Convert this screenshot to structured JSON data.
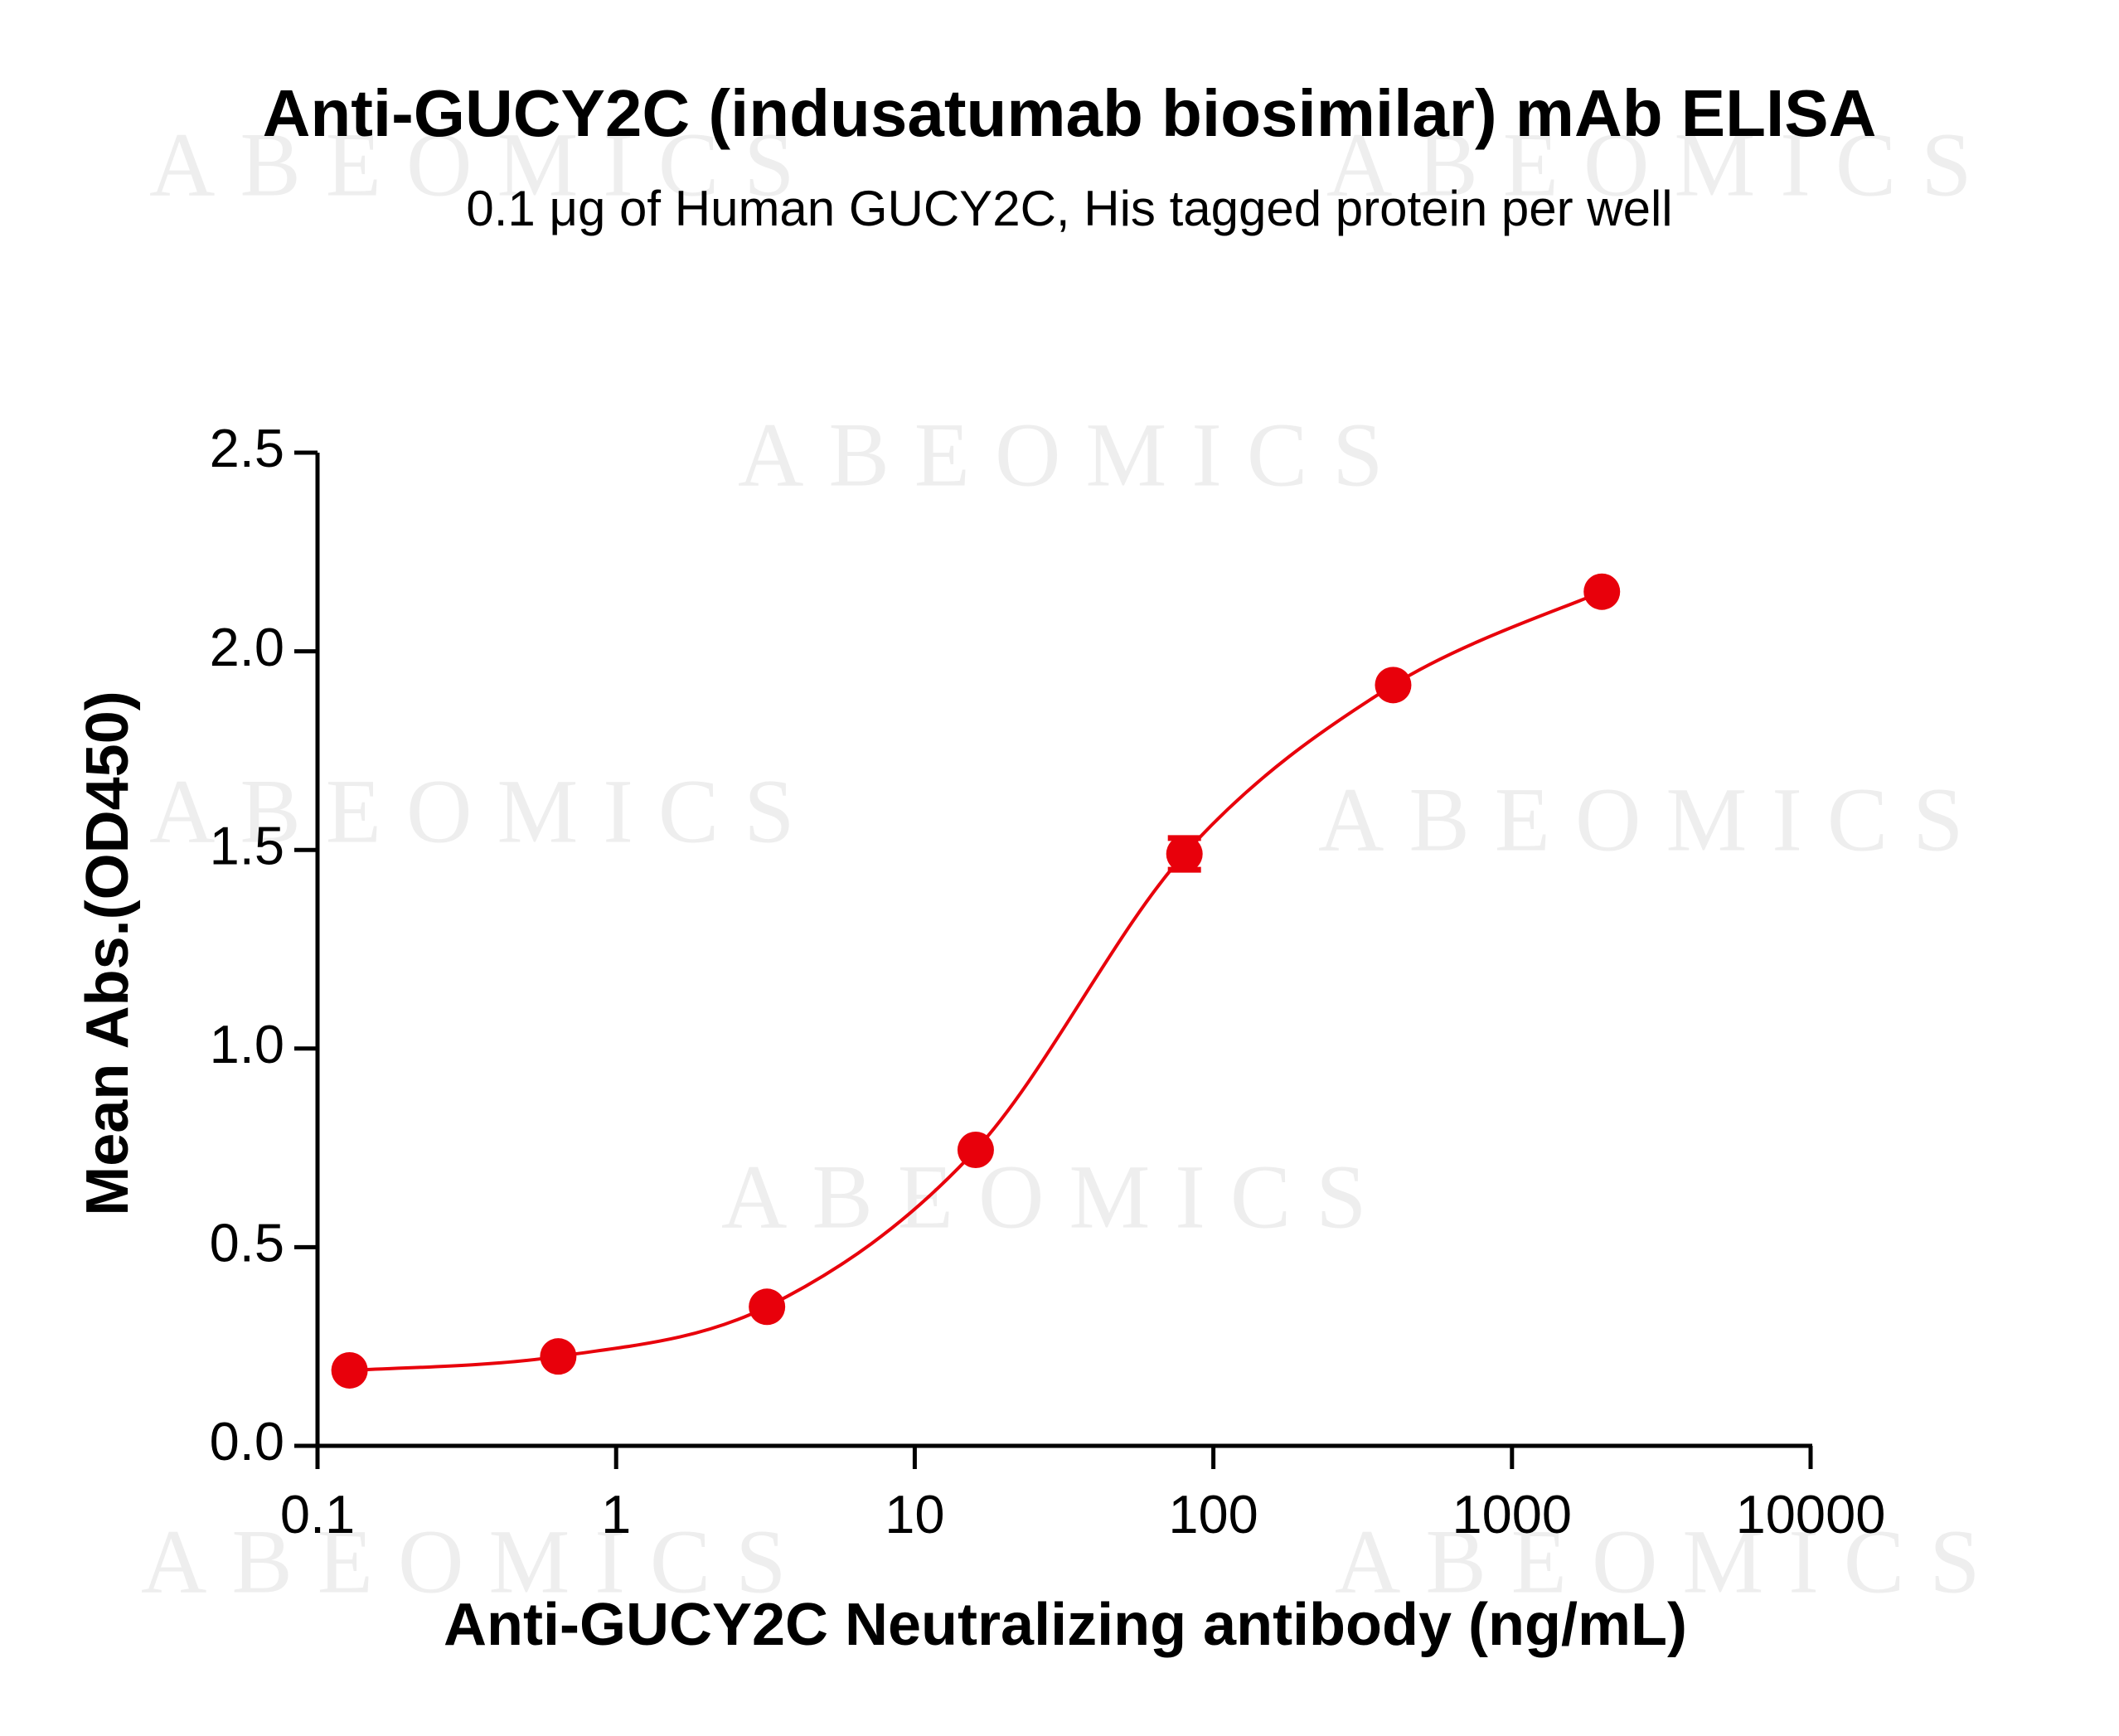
{
  "chart_data": {
    "type": "scatter",
    "title": "Anti-GUCY2C (indusatumab biosimilar) mAb ELISA",
    "subtitle": "0.1 μg of Human GUCY2C, His tagged protein per well",
    "xlabel": "Anti-GUCY2C Neutralizing antibody (ng/mL)",
    "ylabel": "Mean Abs.(OD450)",
    "watermark": "ABEOMICS",
    "xscale": "log",
    "xlim": [
      0.1,
      10000
    ],
    "xticks": [
      0.1,
      1,
      10,
      100,
      1000,
      10000
    ],
    "ylim": [
      0,
      2.5
    ],
    "yticks": [
      {
        "value": 0,
        "label": "0.0"
      },
      {
        "value": 0.5,
        "label": "0.5"
      },
      {
        "value": 1,
        "label": "1.0"
      },
      {
        "value": 1.5,
        "label": "1.5"
      },
      {
        "value": 2,
        "label": "2.0"
      },
      {
        "value": 2.5,
        "label": "2.5"
      }
    ],
    "grid": false,
    "fit_curve": true,
    "series": [
      {
        "color": "#e8000b",
        "x": [
          0.128,
          0.64,
          3.2,
          16,
          80,
          400,
          2000
        ],
        "values": [
          0.19,
          0.225,
          0.35,
          0.745,
          1.49,
          1.915,
          2.15
        ],
        "errors": [
          null,
          null,
          null,
          null,
          0.04,
          null,
          null
        ]
      }
    ]
  }
}
